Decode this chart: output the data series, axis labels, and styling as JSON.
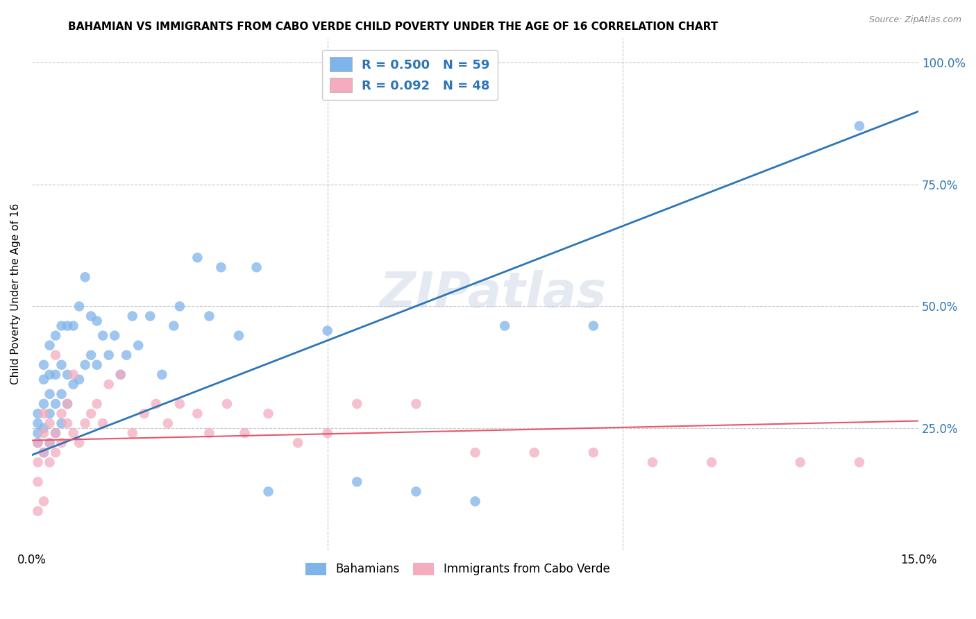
{
  "title": "BAHAMIAN VS IMMIGRANTS FROM CABO VERDE CHILD POVERTY UNDER THE AGE OF 16 CORRELATION CHART",
  "source": "Source: ZipAtlas.com",
  "ylabel": "Child Poverty Under the Age of 16",
  "legend_label1": "Bahamians",
  "legend_label2": "Immigrants from Cabo Verde",
  "R1": 0.5,
  "N1": 59,
  "R2": 0.092,
  "N2": 48,
  "color_blue": "#7EB4EA",
  "color_pink": "#F4ACBE",
  "color_blue_line": "#2E75B6",
  "color_pink_line": "#E8546A",
  "color_blue_text": "#2E75B6",
  "color_pink_text": "#E8546A",
  "background_color": "#FFFFFF",
  "grid_color": "#C8C8C8",
  "watermark": "ZIPatlas",
  "xmin": 0.0,
  "xmax": 0.15,
  "ymin": 0.0,
  "ymax": 1.05,
  "blue_line_y0": 0.195,
  "blue_line_y1": 0.9,
  "pink_line_y0": 0.225,
  "pink_line_y1": 0.265,
  "blue_scatter_x": [
    0.001,
    0.001,
    0.001,
    0.001,
    0.002,
    0.002,
    0.002,
    0.002,
    0.002,
    0.003,
    0.003,
    0.003,
    0.003,
    0.003,
    0.004,
    0.004,
    0.004,
    0.004,
    0.005,
    0.005,
    0.005,
    0.005,
    0.006,
    0.006,
    0.006,
    0.007,
    0.007,
    0.008,
    0.008,
    0.009,
    0.009,
    0.01,
    0.01,
    0.011,
    0.011,
    0.012,
    0.013,
    0.014,
    0.015,
    0.016,
    0.017,
    0.018,
    0.02,
    0.022,
    0.024,
    0.025,
    0.028,
    0.03,
    0.032,
    0.035,
    0.038,
    0.04,
    0.05,
    0.055,
    0.065,
    0.075,
    0.08,
    0.095,
    0.14
  ],
  "blue_scatter_y": [
    0.22,
    0.24,
    0.26,
    0.28,
    0.2,
    0.25,
    0.3,
    0.35,
    0.38,
    0.22,
    0.28,
    0.32,
    0.36,
    0.42,
    0.24,
    0.3,
    0.36,
    0.44,
    0.26,
    0.32,
    0.38,
    0.46,
    0.3,
    0.36,
    0.46,
    0.34,
    0.46,
    0.35,
    0.5,
    0.38,
    0.56,
    0.4,
    0.48,
    0.38,
    0.47,
    0.44,
    0.4,
    0.44,
    0.36,
    0.4,
    0.48,
    0.42,
    0.48,
    0.36,
    0.46,
    0.5,
    0.6,
    0.48,
    0.58,
    0.44,
    0.58,
    0.12,
    0.45,
    0.14,
    0.12,
    0.1,
    0.46,
    0.46,
    0.87
  ],
  "pink_scatter_x": [
    0.001,
    0.001,
    0.001,
    0.001,
    0.002,
    0.002,
    0.002,
    0.002,
    0.003,
    0.003,
    0.003,
    0.004,
    0.004,
    0.004,
    0.005,
    0.005,
    0.006,
    0.006,
    0.007,
    0.007,
    0.008,
    0.009,
    0.01,
    0.011,
    0.012,
    0.013,
    0.015,
    0.017,
    0.019,
    0.021,
    0.023,
    0.025,
    0.028,
    0.03,
    0.033,
    0.036,
    0.04,
    0.045,
    0.05,
    0.055,
    0.065,
    0.075,
    0.085,
    0.095,
    0.105,
    0.115,
    0.13,
    0.14
  ],
  "pink_scatter_y": [
    0.22,
    0.18,
    0.14,
    0.08,
    0.2,
    0.24,
    0.28,
    0.1,
    0.18,
    0.22,
    0.26,
    0.2,
    0.24,
    0.4,
    0.22,
    0.28,
    0.26,
    0.3,
    0.24,
    0.36,
    0.22,
    0.26,
    0.28,
    0.3,
    0.26,
    0.34,
    0.36,
    0.24,
    0.28,
    0.3,
    0.26,
    0.3,
    0.28,
    0.24,
    0.3,
    0.24,
    0.28,
    0.22,
    0.24,
    0.3,
    0.3,
    0.2,
    0.2,
    0.2,
    0.18,
    0.18,
    0.18,
    0.18
  ]
}
